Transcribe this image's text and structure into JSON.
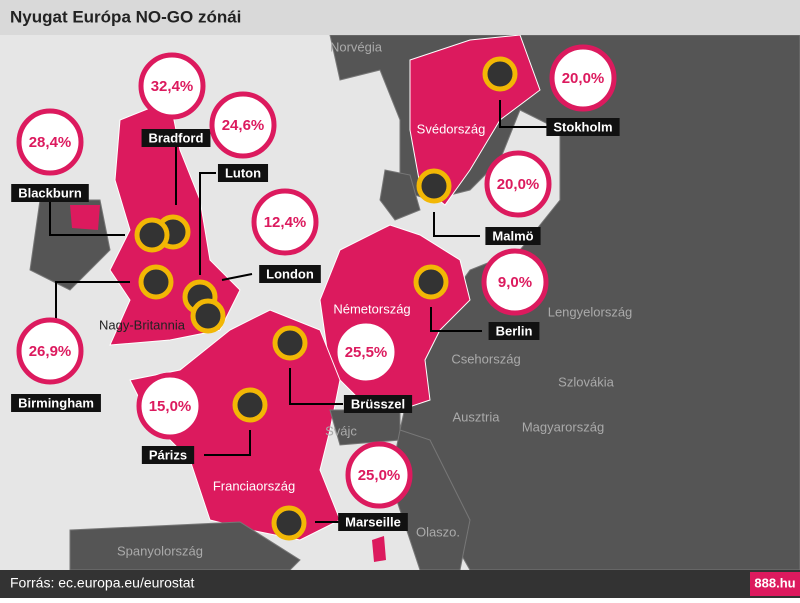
{
  "header": {
    "title": "Nyugat Európa NO-GO zónái"
  },
  "countries": [
    {
      "label": "Norvégia"
    },
    {
      "label": "Svédország"
    },
    {
      "label": "Németország"
    },
    {
      "label": "Lengyelország"
    },
    {
      "label": "Csehország"
    },
    {
      "label": "Szlovákia"
    },
    {
      "label": "Ausztria"
    },
    {
      "label": "Magyarország"
    },
    {
      "label": "Svájc"
    },
    {
      "label": "Franciaország"
    },
    {
      "label": "Olaszo."
    },
    {
      "label": "Spanyolország"
    },
    {
      "label": "Nagy-Britannia"
    }
  ],
  "cities": [
    {
      "name": "Bradford",
      "share": "32,4%"
    },
    {
      "name": "Blackburn",
      "share": "28,4%"
    },
    {
      "name": "Luton",
      "share": "24,6%"
    },
    {
      "name": "London",
      "share": "12,4%"
    },
    {
      "name": "Birmingham",
      "share": "26,9%"
    },
    {
      "name": "Párizs",
      "share": "15,0%"
    },
    {
      "name": "Brüsszel",
      "share": "25,5%"
    },
    {
      "name": "Marseille",
      "share": "25,0%"
    },
    {
      "name": "Berlin",
      "share": "9,0%"
    },
    {
      "name": "Malmö",
      "share": "20,0%"
    },
    {
      "name": "Stokholm",
      "share": "20,0%"
    }
  ],
  "footer": {
    "source": "Forrás: ec.europa.eu/eurostat",
    "brand": "888.hu"
  }
}
